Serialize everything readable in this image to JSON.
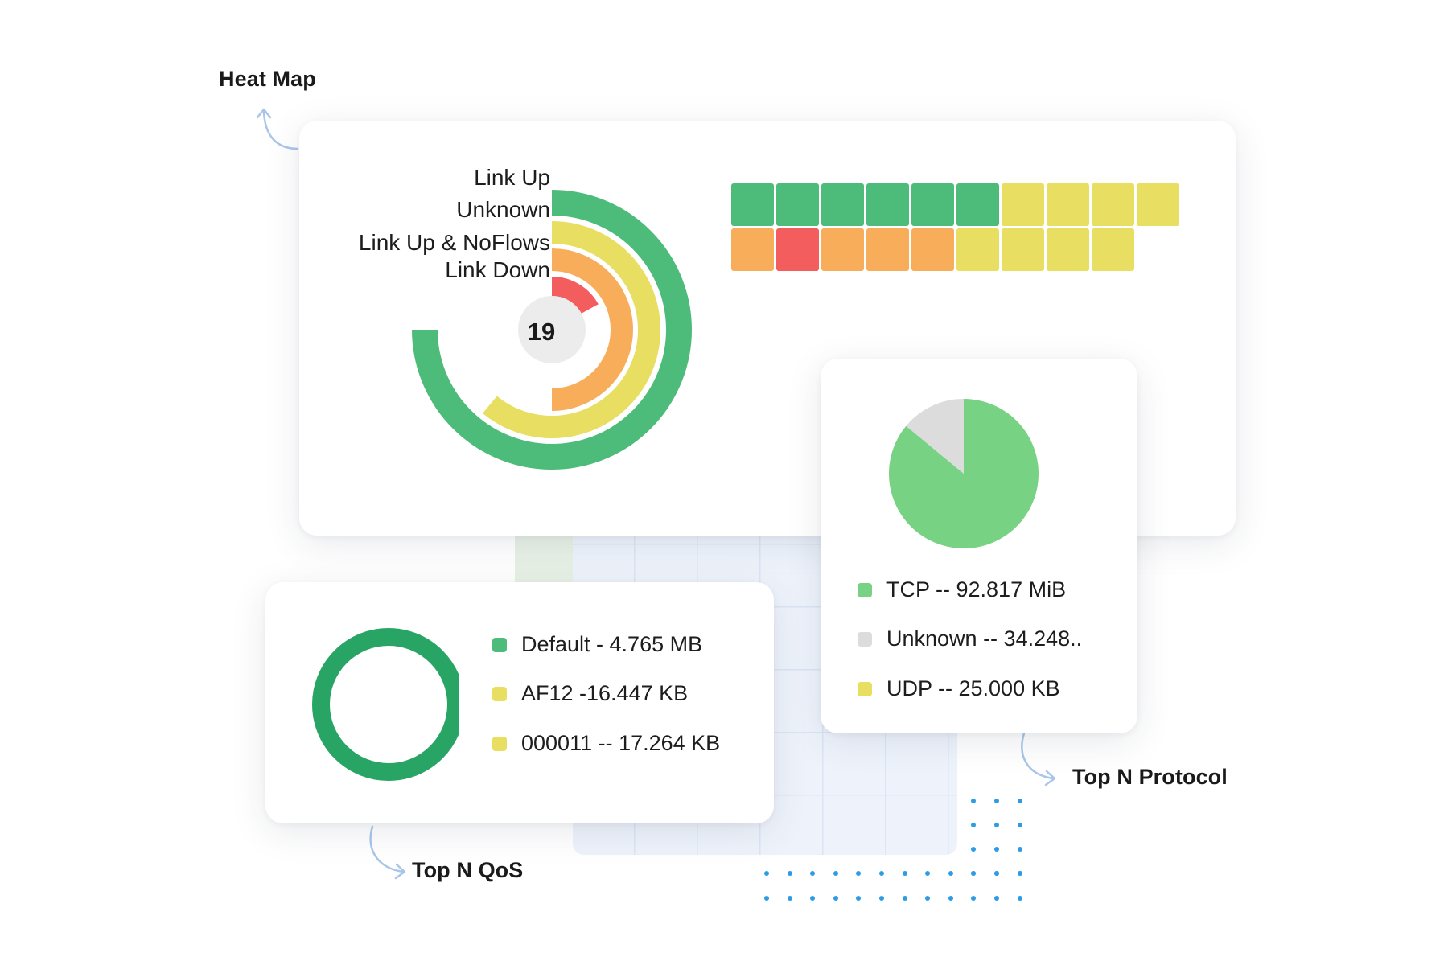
{
  "annotations": {
    "heat_map": "Heat Map",
    "top_n_qos": "Top N QoS",
    "top_n_protocol": "Top N Protocol"
  },
  "colors": {
    "green": "#4dbb7a",
    "dark_green": "#28a564",
    "light_green": "#78d283",
    "yellow": "#e7de62",
    "orange": "#f7ad5a",
    "red": "#f45d5d",
    "gray": "#dcdcdc",
    "arrow": "#a9c6ea"
  },
  "heat_map": {
    "center_count": "19",
    "legend": [
      {
        "label": "Link Up",
        "color": "#4dbb7a"
      },
      {
        "label": "Unknown",
        "color": "#e7de62"
      },
      {
        "label": "Link Up & NoFlows",
        "color": "#f7ad5a"
      },
      {
        "label": "Link Down",
        "color": "#f45d5d"
      }
    ],
    "grid_rows": [
      [
        "green",
        "green",
        "green",
        "green",
        "green",
        "green",
        "yellow",
        "yellow",
        "yellow",
        "yellow"
      ],
      [
        "orange",
        "red",
        "orange",
        "orange",
        "orange",
        "yellow",
        "yellow",
        "yellow",
        "yellow"
      ]
    ]
  },
  "chart_data": [
    {
      "type": "radial-bar",
      "title": "Heat Map",
      "center_label": "19",
      "categories": [
        "Link Up",
        "Unknown",
        "Link Up & NoFlows",
        "Link Down"
      ],
      "values_fraction": [
        0.75,
        0.61,
        0.5,
        0.17
      ]
    },
    {
      "type": "donut",
      "title": "Top N QoS",
      "categories": [
        "Default",
        "AF12",
        "000011"
      ],
      "values": [
        4.765,
        0.016,
        0.017
      ],
      "units": "MB"
    },
    {
      "type": "pie",
      "title": "Top N Protocol",
      "categories": [
        "TCP",
        "Unknown",
        "UDP"
      ],
      "values_fraction": [
        0.86,
        0.14,
        0.0
      ]
    }
  ],
  "qos": {
    "legend": [
      {
        "label": "Default - 4.765 MB",
        "color": "#4dbb7a"
      },
      {
        "label": "AF12 -16.447 KB",
        "color": "#e7de62"
      },
      {
        "label": "000011 -- 17.264  KB",
        "color": "#e7de62"
      }
    ]
  },
  "protocol": {
    "legend": [
      {
        "label": "TCP -- 92.817 MiB",
        "color": "#78d283"
      },
      {
        "label": "Unknown -- 34.248..",
        "color": "#dcdcdc"
      },
      {
        "label": "UDP -- 25.000 KB",
        "color": "#e7de62"
      }
    ]
  }
}
